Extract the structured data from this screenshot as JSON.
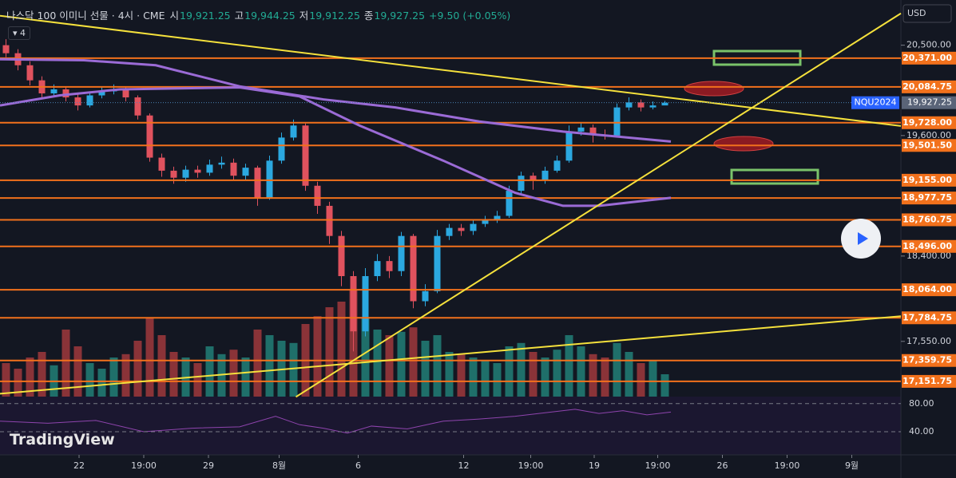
{
  "header": {
    "symbol": "나스닥 100 이미니 선물 · 4시 · CME",
    "open_label": "시",
    "open": "19,921.25",
    "high_label": "고",
    "high": "19,944.25",
    "low_label": "저",
    "low": "19,912.25",
    "close_label": "종",
    "close": "19,927.25",
    "change": "+9.50 (+0.05%)",
    "indicator_count": "4",
    "logo": "TradingView"
  },
  "chart_data": {
    "type": "candlestick",
    "currency": "USD",
    "symbol_tag": "NQU2024",
    "last_price": {
      "value": 19927.25,
      "label": "19,927.25"
    },
    "xlim": [
      0,
      75.2
    ],
    "xticks": [
      {
        "value": 6.6,
        "label": "22"
      },
      {
        "value": 12,
        "label": "19:00"
      },
      {
        "value": 17.4,
        "label": "29"
      },
      {
        "value": 23.3,
        "label": "8월"
      },
      {
        "value": 29.9,
        "label": "6"
      },
      {
        "value": 38.7,
        "label": "12"
      },
      {
        "value": 44.3,
        "label": "19:00"
      },
      {
        "value": 49.6,
        "label": "19"
      },
      {
        "value": 54.9,
        "label": "19:00"
      },
      {
        "value": 60.3,
        "label": "26"
      },
      {
        "value": 65.7,
        "label": "19:00"
      },
      {
        "value": 71.1,
        "label": "9월"
      }
    ],
    "ylim": [
      17000,
      20950
    ],
    "yticks": [
      {
        "value": 20500,
        "label": "20,500.00"
      },
      {
        "value": 19600,
        "label": "19,600.00"
      },
      {
        "value": 18400,
        "label": "18,400.00"
      },
      {
        "value": 17550,
        "label": "17,550.00"
      }
    ],
    "candles": {
      "up_color": "#2ba8e0",
      "down_color": "#e0525e",
      "open": [
        20500,
        20420,
        20300,
        20150,
        20020,
        20060,
        19980,
        19900,
        20000,
        20040,
        20060,
        19980,
        19800,
        19380,
        19250,
        19180,
        19260,
        19230,
        19310,
        19330,
        19200,
        19280,
        18980,
        19350,
        19580,
        19700,
        19100,
        18900,
        18600,
        18200,
        17650,
        18200,
        18350,
        18250,
        18600,
        17950,
        18050,
        18600,
        18680,
        18650,
        18720,
        18760,
        18800,
        19050,
        19200,
        19150,
        19250,
        19350,
        19640,
        19680,
        19610,
        19600,
        19880,
        19930,
        19880,
        19900
      ],
      "high": [
        20560,
        20460,
        20340,
        20190,
        20110,
        20090,
        20010,
        20040,
        20080,
        20110,
        20080,
        20000,
        19820,
        19420,
        19290,
        19300,
        19300,
        19360,
        19390,
        19370,
        19320,
        19300,
        19400,
        19630,
        19760,
        19720,
        19140,
        18940,
        18650,
        18250,
        18280,
        18420,
        18400,
        18640,
        18620,
        18120,
        18660,
        18720,
        18720,
        18760,
        18800,
        18850,
        19100,
        19240,
        19230,
        19290,
        19400,
        19700,
        19730,
        19710,
        19660,
        19920,
        19980,
        19960,
        19940,
        19944.25
      ],
      "low": [
        20380,
        20250,
        20100,
        19980,
        19990,
        19940,
        19850,
        19880,
        19970,
        20010,
        19940,
        19760,
        19340,
        19190,
        19120,
        19140,
        19180,
        19200,
        19270,
        19160,
        19150,
        18900,
        18960,
        19320,
        19550,
        19050,
        18820,
        18520,
        18100,
        17450,
        17600,
        18150,
        18180,
        18200,
        17880,
        17900,
        18030,
        18560,
        18600,
        18610,
        18690,
        18730,
        18780,
        19020,
        19060,
        19120,
        19230,
        19330,
        19600,
        19530,
        19560,
        19580,
        19850,
        19840,
        19860,
        19912.25
      ],
      "close": [
        20420,
        20300,
        20150,
        20020,
        20060,
        19980,
        19900,
        20000,
        20040,
        20060,
        19980,
        19800,
        19380,
        19250,
        19180,
        19260,
        19230,
        19310,
        19330,
        19200,
        19280,
        18980,
        19350,
        19580,
        19700,
        19100,
        18900,
        18600,
        18200,
        17650,
        18200,
        18350,
        18250,
        18600,
        17950,
        18050,
        18600,
        18680,
        18650,
        18720,
        18760,
        18800,
        19050,
        19200,
        19150,
        19250,
        19350,
        19640,
        19680,
        19610,
        19600,
        19880,
        19930,
        19880,
        19900,
        19927.25
      ]
    },
    "volume": {
      "ylim": [
        0,
        100
      ],
      "up_color": "#1f6f6a",
      "down_color": "#8a3338",
      "values": [
        30,
        25,
        35,
        40,
        28,
        60,
        45,
        30,
        25,
        35,
        38,
        50,
        70,
        55,
        40,
        35,
        30,
        45,
        38,
        42,
        35,
        60,
        55,
        50,
        48,
        65,
        72,
        80,
        85,
        95,
        70,
        60,
        55,
        58,
        62,
        50,
        55,
        40,
        38,
        35,
        32,
        30,
        45,
        48,
        40,
        35,
        42,
        55,
        45,
        38,
        35,
        48,
        40,
        30,
        32,
        20
      ]
    },
    "levels": {
      "color": "#f2711c",
      "values": [
        {
          "value": 20371,
          "label": "20,371.00"
        },
        {
          "value": 20084.75,
          "label": "20,084.75"
        },
        {
          "value": 19728,
          "label": "19,728.00"
        },
        {
          "value": 19501.5,
          "label": "19,501.50"
        },
        {
          "value": 19155,
          "label": "19,155.00"
        },
        {
          "value": 18977.75,
          "label": "18,977.75"
        },
        {
          "value": 18760.75,
          "label": "18,760.75"
        },
        {
          "value": 18496,
          "label": "18,496.00"
        },
        {
          "value": 18064,
          "label": "18,064.00"
        },
        {
          "value": 17784.75,
          "label": "17,784.75"
        },
        {
          "value": 17359.75,
          "label": "17,359.75"
        },
        {
          "value": 17151.75,
          "label": "17,151.75"
        }
      ]
    },
    "lines": [
      {
        "color": "#9b6bd6",
        "x": [
          0,
          7,
          13,
          20,
          27,
          33,
          40,
          47,
          56
        ],
        "values": [
          20360,
          20350,
          20300,
          20090,
          19960,
          19880,
          19740,
          19640,
          19540
        ]
      },
      {
        "color": "#9b6bd6",
        "x": [
          0,
          5,
          10,
          20,
          25,
          30,
          37,
          43,
          47,
          50,
          56
        ],
        "values": [
          19900,
          20000,
          20060,
          20080,
          19990,
          19700,
          19350,
          19030,
          18900,
          18900,
          18980
        ]
      },
      {
        "color": "#f5e13c",
        "x": [
          0,
          75.2
        ],
        "values": [
          20793,
          19695
        ]
      },
      {
        "color": "#f5e13c",
        "x": [
          24.7,
          75.2
        ],
        "values": [
          16997,
          20817
        ]
      },
      {
        "color": "#f5e13c",
        "x": [
          0,
          75.2
        ],
        "values": [
          17029,
          17801
        ]
      }
    ],
    "rsi": {
      "ylim": [
        7,
        90
      ],
      "color": "#8e44ad",
      "yticks": [
        {
          "value": 80,
          "label": "80.00"
        },
        {
          "value": 40,
          "label": "40.00"
        }
      ],
      "x": [
        0,
        4,
        8,
        12,
        16,
        20,
        23,
        25,
        27,
        29,
        31,
        34,
        37,
        40,
        43,
        46,
        48,
        50,
        52,
        54,
        56
      ],
      "values": [
        55,
        52,
        56,
        40,
        45,
        47,
        62,
        50,
        45,
        38,
        48,
        44,
        55,
        58,
        62,
        68,
        72,
        66,
        70,
        64,
        68
      ]
    }
  }
}
